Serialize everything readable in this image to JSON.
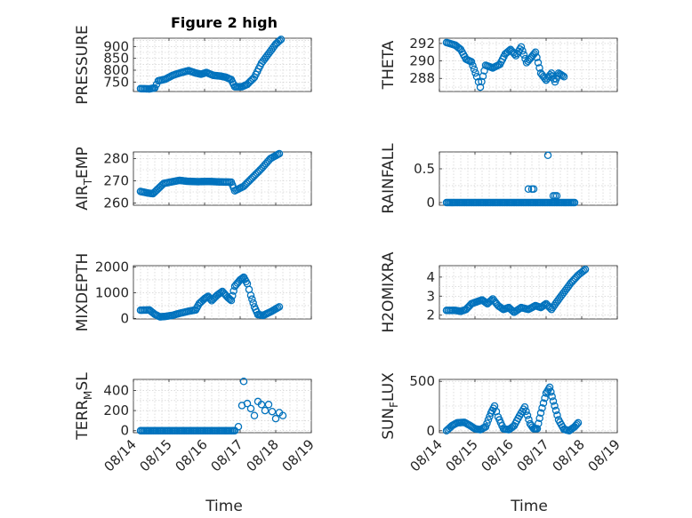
{
  "figure_title": "Figure 2 high",
  "xlabel": "Time",
  "marker_color": "#0072BD",
  "x_ticks": [
    "08/14",
    "08/15",
    "08/16",
    "08/17",
    "08/18",
    "08/19"
  ],
  "chart_data": [
    {
      "type": "scatter",
      "id": "pressure",
      "ylabel": "PRESSURE",
      "xlim": [
        "08/14",
        "08/19"
      ],
      "ylim": [
        710,
        935
      ],
      "yticks": [
        750,
        800,
        850,
        900
      ],
      "anchors": [
        [
          0.2,
          722
        ],
        [
          0.45,
          721
        ],
        [
          0.6,
          725
        ],
        [
          0.7,
          755
        ],
        [
          0.9,
          762
        ],
        [
          1.1,
          778
        ],
        [
          1.3,
          788
        ],
        [
          1.55,
          798
        ],
        [
          1.75,
          788
        ],
        [
          1.9,
          783
        ],
        [
          2.05,
          790
        ],
        [
          2.25,
          778
        ],
        [
          2.45,
          775
        ],
        [
          2.6,
          770
        ],
        [
          2.75,
          760
        ],
        [
          2.85,
          730
        ],
        [
          3.05,
          730
        ],
        [
          3.2,
          740
        ],
        [
          3.4,
          770
        ],
        [
          3.6,
          830
        ],
        [
          3.8,
          870
        ],
        [
          4.0,
          910
        ],
        [
          4.15,
          930
        ]
      ]
    },
    {
      "type": "scatter",
      "id": "theta",
      "ylabel": "THETA",
      "xlim": [
        "08/14",
        "08/19"
      ],
      "ylim": [
        286.5,
        292.6
      ],
      "yticks": [
        288,
        290,
        292
      ],
      "anchors": [
        [
          0.2,
          292.1
        ],
        [
          0.45,
          291.8
        ],
        [
          0.6,
          291.3
        ],
        [
          0.75,
          290.2
        ],
        [
          0.9,
          289.9
        ],
        [
          1.05,
          288.2
        ],
        [
          1.15,
          287.0
        ],
        [
          1.3,
          289.5
        ],
        [
          1.5,
          289.2
        ],
        [
          1.7,
          289.6
        ],
        [
          1.85,
          290.8
        ],
        [
          2.0,
          291.3
        ],
        [
          2.15,
          290.6
        ],
        [
          2.3,
          291.6
        ],
        [
          2.45,
          289.8
        ],
        [
          2.6,
          290.5
        ],
        [
          2.7,
          291.0
        ],
        [
          2.85,
          288.6
        ],
        [
          3.0,
          287.8
        ],
        [
          3.15,
          288.6
        ],
        [
          3.25,
          287.6
        ],
        [
          3.35,
          288.6
        ],
        [
          3.5,
          288.2
        ]
      ]
    },
    {
      "type": "scatter",
      "id": "air_temp",
      "ylabel": "AIR_TEMP",
      "xlim": [
        "08/14",
        "08/19"
      ],
      "ylim": [
        259,
        283
      ],
      "yticks": [
        260,
        270,
        280
      ],
      "anchors": [
        [
          0.2,
          265.2
        ],
        [
          0.4,
          264.5
        ],
        [
          0.55,
          264.2
        ],
        [
          0.7,
          266.5
        ],
        [
          0.85,
          268.8
        ],
        [
          1.1,
          269.6
        ],
        [
          1.3,
          270.2
        ],
        [
          1.5,
          269.8
        ],
        [
          1.8,
          269.6
        ],
        [
          2.1,
          269.7
        ],
        [
          2.45,
          269.5
        ],
        [
          2.75,
          269.4
        ],
        [
          2.85,
          265.5
        ],
        [
          3.1,
          267.5
        ],
        [
          3.35,
          271.5
        ],
        [
          3.6,
          275.5
        ],
        [
          3.85,
          280.0
        ],
        [
          4.1,
          282.2
        ]
      ]
    },
    {
      "type": "scatter",
      "id": "rainfall",
      "ylabel": "RAINFALL",
      "xlim": [
        "08/14",
        "08/19"
      ],
      "ylim": [
        -0.04,
        0.75
      ],
      "yticks": [
        0,
        0.5
      ],
      "anchors": [
        [
          0.2,
          0
        ],
        [
          3.8,
          0
        ]
      ],
      "extra": [
        [
          2.5,
          0.2
        ],
        [
          2.6,
          0.2
        ],
        [
          2.65,
          0.2
        ],
        [
          3.05,
          0.7
        ],
        [
          3.2,
          0.1
        ],
        [
          3.25,
          0.1
        ],
        [
          3.3,
          0.1
        ]
      ]
    },
    {
      "type": "scatter",
      "id": "mixdepth",
      "ylabel": "MIXDEPTH",
      "xlim": [
        "08/14",
        "08/19"
      ],
      "ylim": [
        -20,
        2050
      ],
      "yticks": [
        0,
        1000,
        2000
      ],
      "anchors": [
        [
          0.2,
          320
        ],
        [
          0.45,
          330
        ],
        [
          0.6,
          160
        ],
        [
          0.75,
          60
        ],
        [
          0.9,
          80
        ],
        [
          1.1,
          120
        ],
        [
          1.3,
          200
        ],
        [
          1.55,
          280
        ],
        [
          1.75,
          330
        ],
        [
          1.85,
          580
        ],
        [
          2.0,
          770
        ],
        [
          2.1,
          860
        ],
        [
          2.2,
          690
        ],
        [
          2.35,
          900
        ],
        [
          2.5,
          1050
        ],
        [
          2.65,
          820
        ],
        [
          2.75,
          700
        ],
        [
          2.85,
          1250
        ],
        [
          3.0,
          1500
        ],
        [
          3.1,
          1600
        ],
        [
          3.2,
          1350
        ],
        [
          3.3,
          900
        ],
        [
          3.4,
          450
        ],
        [
          3.5,
          150
        ],
        [
          3.65,
          120
        ],
        [
          3.85,
          250
        ],
        [
          4.1,
          450
        ]
      ]
    },
    {
      "type": "scatter",
      "id": "h2omixra",
      "ylabel": "H2OMIXRA",
      "xlim": [
        "08/14",
        "08/19"
      ],
      "ylim": [
        1.8,
        4.6
      ],
      "yticks": [
        2,
        3,
        4
      ],
      "anchors": [
        [
          0.2,
          2.25
        ],
        [
          0.45,
          2.25
        ],
        [
          0.6,
          2.2
        ],
        [
          0.75,
          2.3
        ],
        [
          0.9,
          2.6
        ],
        [
          1.05,
          2.7
        ],
        [
          1.2,
          2.8
        ],
        [
          1.35,
          2.6
        ],
        [
          1.5,
          2.85
        ],
        [
          1.65,
          2.5
        ],
        [
          1.8,
          2.3
        ],
        [
          1.95,
          2.4
        ],
        [
          2.1,
          2.15
        ],
        [
          2.3,
          2.4
        ],
        [
          2.5,
          2.3
        ],
        [
          2.7,
          2.5
        ],
        [
          2.85,
          2.4
        ],
        [
          3.0,
          2.6
        ],
        [
          3.15,
          2.3
        ],
        [
          3.3,
          2.7
        ],
        [
          3.5,
          3.2
        ],
        [
          3.7,
          3.7
        ],
        [
          3.9,
          4.1
        ],
        [
          4.1,
          4.4
        ]
      ]
    },
    {
      "type": "scatter",
      "id": "terr_msl",
      "ylabel": "TERR_MSL",
      "xlim": [
        "08/14",
        "08/19"
      ],
      "ylim": [
        -20,
        510
      ],
      "yticks": [
        0,
        200,
        400
      ],
      "anchors": [
        [
          0.2,
          0
        ],
        [
          2.85,
          0
        ]
      ],
      "extra": [
        [
          2.95,
          40
        ],
        [
          3.05,
          250
        ],
        [
          3.1,
          490
        ],
        [
          3.2,
          270
        ],
        [
          3.3,
          220
        ],
        [
          3.4,
          150
        ],
        [
          3.5,
          290
        ],
        [
          3.6,
          260
        ],
        [
          3.7,
          200
        ],
        [
          3.8,
          260
        ],
        [
          3.9,
          190
        ],
        [
          4.0,
          120
        ],
        [
          4.1,
          180
        ],
        [
          4.2,
          150
        ]
      ]
    },
    {
      "type": "scatter",
      "id": "sun_flux",
      "ylabel": "SUN_FLUX",
      "xlim": [
        "08/14",
        "08/19"
      ],
      "ylim": [
        -20,
        520
      ],
      "yticks": [
        0,
        500
      ],
      "anchors": [
        [
          0.2,
          0
        ],
        [
          0.35,
          50
        ],
        [
          0.5,
          80
        ],
        [
          0.7,
          85
        ],
        [
          0.85,
          55
        ],
        [
          1.0,
          20
        ],
        [
          1.15,
          10
        ],
        [
          1.3,
          40
        ],
        [
          1.45,
          180
        ],
        [
          1.55,
          250
        ],
        [
          1.65,
          140
        ],
        [
          1.8,
          20
        ],
        [
          1.95,
          10
        ],
        [
          2.1,
          50
        ],
        [
          2.25,
          150
        ],
        [
          2.4,
          240
        ],
        [
          2.55,
          70
        ],
        [
          2.65,
          20
        ],
        [
          2.75,
          20
        ],
        [
          2.85,
          180
        ],
        [
          3.0,
          380
        ],
        [
          3.1,
          440
        ],
        [
          3.2,
          300
        ],
        [
          3.35,
          110
        ],
        [
          3.5,
          15
        ],
        [
          3.65,
          0
        ],
        [
          3.8,
          40
        ],
        [
          3.9,
          80
        ]
      ]
    }
  ]
}
